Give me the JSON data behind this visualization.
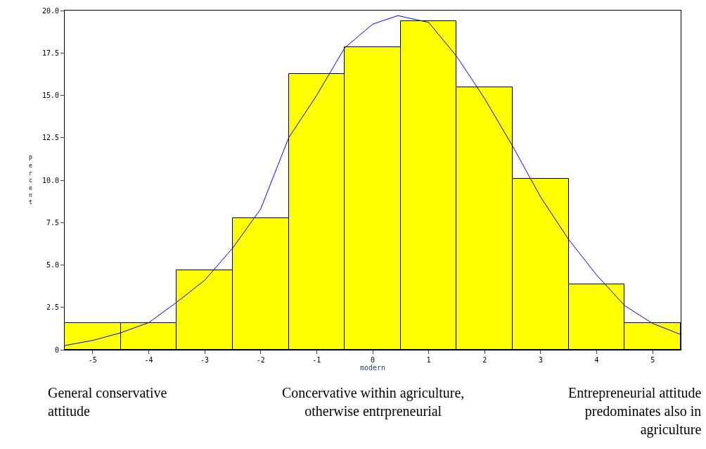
{
  "chart_data": {
    "type": "histogram",
    "xlabel": "modern",
    "ylabel": "Percent",
    "bins": [
      -5.5,
      -4.5,
      -3.5,
      -2.5,
      -1.5,
      -0.5,
      0.5,
      1.5,
      2.5,
      3.5,
      4.5,
      5.5
    ],
    "values": [
      1.56,
      1.56,
      4.67,
      7.75,
      16.27,
      17.83,
      19.38,
      15.49,
      10.08,
      3.85,
      1.56
    ],
    "color": "#ffff00",
    "series": [
      {
        "type": "line",
        "color": "#0000ff",
        "x": [
          -5.5,
          -5,
          -4.5,
          -4,
          -3.5,
          -3,
          -2.5,
          -2,
          -1.5,
          -1,
          -0.5,
          0,
          0.45,
          1,
          1.5,
          2,
          2.5,
          3,
          3.5,
          4,
          4.5,
          5,
          5.5
        ],
        "values": [
          0.25,
          0.55,
          1.0,
          1.6,
          2.8,
          4.1,
          6.0,
          8.3,
          12.5,
          15.0,
          17.8,
          19.2,
          19.7,
          19.3,
          17.3,
          14.8,
          12.0,
          9.0,
          6.5,
          4.4,
          2.6,
          1.55,
          0.9
        ]
      }
    ],
    "xlim": [
      -5.5,
      5.5
    ],
    "xticks": [
      -5,
      -4,
      -3,
      -2,
      -1,
      0,
      1,
      2,
      3,
      4,
      5
    ],
    "ylim": [
      0,
      20
    ],
    "yticks": [
      {
        "value": 0,
        "label": "0"
      },
      {
        "value": 2.5,
        "label": "2.5"
      },
      {
        "value": 5,
        "label": "5.0"
      },
      {
        "value": 7.5,
        "label": "7.5"
      },
      {
        "value": 10,
        "label": "10.0"
      },
      {
        "value": 12.5,
        "label": "12.5"
      },
      {
        "value": 15,
        "label": "15.0"
      },
      {
        "value": 17.5,
        "label": "17.5"
      },
      {
        "value": 20,
        "label": "20.0"
      }
    ],
    "annotations": [
      "General conservative\nattitude",
      "Concervative within agriculture,\notherwise entrpreneurial",
      "Entrepreneurial attitude\npredominates also in\nagriculture"
    ]
  }
}
